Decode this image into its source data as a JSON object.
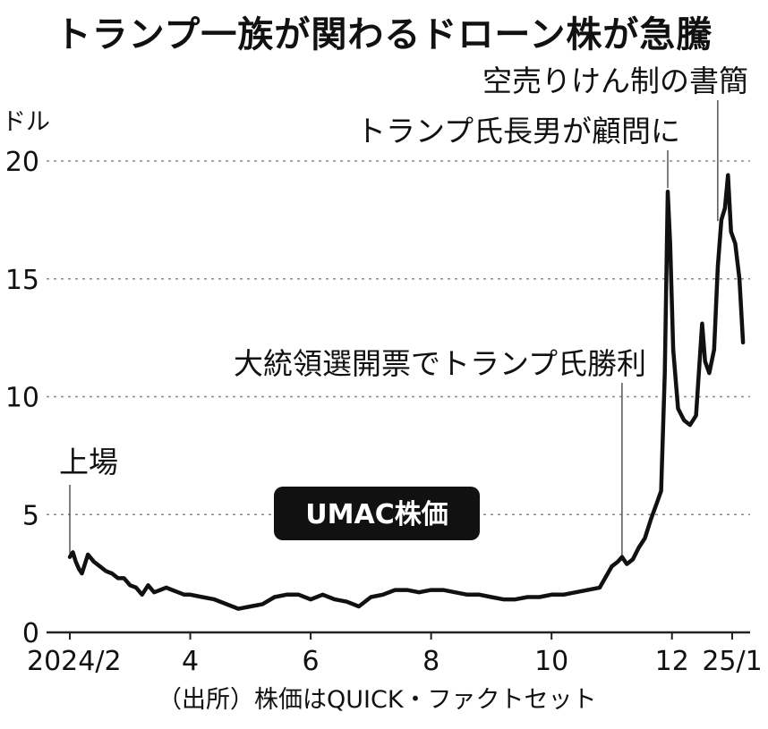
{
  "chart_data": {
    "type": "line",
    "title": "トランプ一族が関わるドローン株が急騰",
    "ylabel": "ドル",
    "ylim": [
      0,
      20
    ],
    "yticks": [
      0,
      5,
      10,
      15,
      20
    ],
    "grid": "horizontal dotted",
    "series_label": "UMAC株価",
    "source": "（出所）株価はQUICK・ファクトセット",
    "xticks": [
      {
        "label": "2024/2",
        "x": 0
      },
      {
        "label": "4",
        "x": 2
      },
      {
        "label": "6",
        "x": 4
      },
      {
        "label": "8",
        "x": 6
      },
      {
        "label": "10",
        "x": 8
      },
      {
        "label": "12",
        "x": 10
      },
      {
        "label": "25/1",
        "x": 11
      }
    ],
    "annotations": [
      {
        "text": "上場",
        "x": 0.0,
        "y": 3.2
      },
      {
        "text": "大統領選開票でトランプ氏勝利",
        "x": 9.17,
        "y": 2.9
      },
      {
        "text": "トランプ氏長男が顧問に",
        "x": 9.93,
        "y": 18.7
      },
      {
        "text": "空売りけん制の書簡",
        "x": 10.76,
        "y": 17.3
      }
    ],
    "series": [
      {
        "x": [
          0.0,
          0.05,
          0.1,
          0.15,
          0.2,
          0.3,
          0.4,
          0.5,
          0.6,
          0.7,
          0.8,
          0.9,
          1.0,
          1.1,
          1.2,
          1.3,
          1.4,
          1.5,
          1.6,
          1.7,
          1.8,
          1.9,
          2.0,
          2.2,
          2.4,
          2.6,
          2.8,
          3.0,
          3.2,
          3.4,
          3.6,
          3.8,
          4.0,
          4.2,
          4.4,
          4.6,
          4.8,
          5.0,
          5.2,
          5.4,
          5.6,
          5.8,
          6.0,
          6.2,
          6.4,
          6.6,
          6.8,
          7.0,
          7.2,
          7.4,
          7.6,
          7.8,
          8.0,
          8.2,
          8.4,
          8.6,
          8.8,
          9.0,
          9.1,
          9.17,
          9.25,
          9.35,
          9.45,
          9.55,
          9.65,
          9.75,
          9.82,
          9.88,
          9.93,
          9.97,
          10.02,
          10.1,
          10.2,
          10.3,
          10.4,
          10.5,
          10.55,
          10.62,
          10.7,
          10.76,
          10.82,
          10.88,
          10.93,
          10.98,
          11.05,
          11.12,
          11.18
        ],
        "y": [
          3.2,
          3.4,
          3.0,
          2.7,
          2.5,
          3.3,
          3.0,
          2.8,
          2.6,
          2.5,
          2.3,
          2.3,
          2.0,
          1.9,
          1.6,
          2.0,
          1.7,
          1.8,
          1.9,
          1.8,
          1.7,
          1.6,
          1.6,
          1.5,
          1.4,
          1.2,
          1.0,
          1.1,
          1.2,
          1.5,
          1.6,
          1.6,
          1.4,
          1.6,
          1.4,
          1.3,
          1.1,
          1.5,
          1.6,
          1.8,
          1.8,
          1.7,
          1.8,
          1.8,
          1.7,
          1.6,
          1.6,
          1.5,
          1.4,
          1.4,
          1.5,
          1.5,
          1.6,
          1.6,
          1.7,
          1.8,
          1.9,
          2.8,
          3.0,
          3.2,
          2.9,
          3.1,
          3.6,
          4.0,
          4.8,
          5.5,
          6.0,
          11.0,
          18.7,
          16.5,
          12.0,
          9.5,
          9.0,
          8.8,
          9.2,
          13.1,
          11.5,
          11.0,
          12.0,
          15.5,
          17.5,
          18.0,
          19.4,
          17.0,
          16.5,
          15.0,
          12.3
        ]
      }
    ]
  }
}
